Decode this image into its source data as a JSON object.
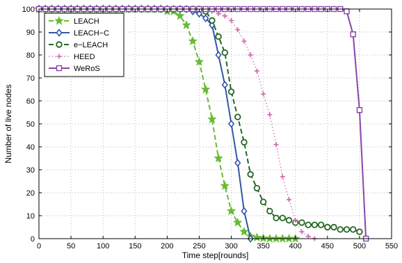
{
  "chart_data": {
    "type": "line",
    "xlabel": "Time step[rounds]",
    "ylabel": "Number of live nodes",
    "xlim": [
      0,
      550
    ],
    "ylim": [
      0,
      100
    ],
    "xticks": [
      0,
      50,
      100,
      150,
      200,
      250,
      300,
      350,
      400,
      450,
      500,
      550
    ],
    "yticks": [
      0,
      10,
      20,
      30,
      40,
      50,
      60,
      70,
      80,
      90,
      100
    ],
    "grid": "dotted",
    "legend_position": "top-left",
    "series": [
      {
        "name": "LEACH",
        "color": "#66bb33",
        "line_style": "dashed",
        "marker": "star",
        "x": [
          0,
          10,
          20,
          30,
          40,
          50,
          60,
          70,
          80,
          90,
          100,
          110,
          120,
          130,
          140,
          150,
          160,
          170,
          180,
          190,
          200,
          210,
          220,
          230,
          240,
          250,
          260,
          270,
          280,
          290,
          300,
          310,
          320,
          330,
          340,
          350,
          360,
          370,
          380,
          390,
          400
        ],
        "y": [
          100,
          100,
          100,
          100,
          100,
          100,
          100,
          100,
          100,
          100,
          100,
          100,
          100,
          100,
          100,
          100,
          100,
          100,
          100,
          100,
          99,
          99,
          97,
          93,
          86,
          77,
          65,
          52,
          35,
          23,
          12,
          7,
          3,
          1,
          0.5,
          0.2,
          0,
          0,
          0,
          0,
          0
        ]
      },
      {
        "name": "LEACH−C",
        "color": "#3355aa",
        "line_style": "solid",
        "marker": "diamond",
        "x": [
          0,
          10,
          20,
          30,
          40,
          50,
          60,
          70,
          80,
          90,
          100,
          110,
          120,
          130,
          140,
          150,
          160,
          170,
          180,
          190,
          200,
          210,
          220,
          230,
          240,
          250,
          260,
          270,
          280,
          290,
          300,
          310,
          320,
          330
        ],
        "y": [
          100,
          100,
          100,
          100,
          100,
          100,
          100,
          100,
          100,
          100,
          100,
          100,
          100,
          100,
          100,
          100,
          100,
          100,
          100,
          100,
          100,
          100,
          100,
          100,
          99,
          98,
          96,
          93,
          80,
          67,
          50,
          33,
          12,
          0
        ]
      },
      {
        "name": "e−LEACH",
        "color": "#226622",
        "line_style": "dashed",
        "marker": "circle",
        "x": [
          0,
          10,
          20,
          30,
          40,
          50,
          60,
          70,
          80,
          90,
          100,
          110,
          120,
          130,
          140,
          150,
          160,
          170,
          180,
          190,
          200,
          210,
          220,
          230,
          240,
          250,
          260,
          270,
          280,
          290,
          300,
          310,
          320,
          330,
          340,
          350,
          360,
          370,
          380,
          390,
          400,
          410,
          420,
          430,
          440,
          450,
          460,
          470,
          480,
          490,
          500
        ],
        "y": [
          100,
          100,
          100,
          100,
          100,
          100,
          100,
          100,
          100,
          100,
          100,
          100,
          100,
          100,
          100,
          100,
          100,
          100,
          100,
          100,
          100,
          100,
          100,
          100,
          100,
          100,
          99,
          95,
          88,
          81,
          64,
          53,
          42,
          28,
          22,
          16,
          12,
          9,
          9,
          8,
          7,
          7,
          6,
          6,
          6,
          5,
          5,
          4,
          4,
          4,
          3
        ]
      },
      {
        "name": "HEED",
        "color": "#cc66aa",
        "line_style": "dotted",
        "marker": "plus",
        "x": [
          0,
          10,
          20,
          30,
          40,
          50,
          60,
          70,
          80,
          90,
          100,
          110,
          120,
          130,
          140,
          150,
          160,
          170,
          180,
          190,
          200,
          210,
          220,
          230,
          240,
          250,
          260,
          270,
          280,
          290,
          300,
          310,
          320,
          330,
          340,
          350,
          360,
          370,
          380,
          390,
          400,
          410,
          420,
          430
        ],
        "y": [
          100,
          100,
          100,
          100,
          100,
          100,
          100,
          100,
          100,
          100,
          100,
          100,
          100,
          100,
          100,
          100,
          100,
          100,
          100,
          100,
          100,
          100,
          100,
          100,
          100,
          100,
          100,
          99,
          98,
          97,
          95,
          91,
          86,
          80,
          73,
          63,
          54,
          41,
          27,
          17,
          8,
          3,
          1,
          0
        ]
      },
      {
        "name": "WeRoS",
        "color": "#8844aa",
        "line_style": "solid",
        "marker": "square",
        "x": [
          0,
          10,
          20,
          30,
          40,
          50,
          60,
          70,
          80,
          90,
          100,
          110,
          120,
          130,
          140,
          150,
          160,
          170,
          180,
          190,
          200,
          210,
          220,
          230,
          240,
          250,
          260,
          270,
          280,
          290,
          300,
          310,
          320,
          330,
          340,
          350,
          360,
          370,
          380,
          390,
          400,
          410,
          420,
          430,
          440,
          450,
          460,
          470,
          480,
          490,
          500,
          510
        ],
        "y": [
          100,
          100,
          100,
          100,
          100,
          100,
          100,
          100,
          100,
          100,
          100,
          100,
          100,
          100,
          100,
          100,
          100,
          100,
          100,
          100,
          100,
          100,
          100,
          100,
          100,
          100,
          100,
          100,
          100,
          100,
          100,
          100,
          100,
          100,
          100,
          100,
          100,
          100,
          100,
          100,
          100,
          100,
          100,
          100,
          100,
          100,
          100,
          100,
          99,
          89,
          56,
          0
        ]
      }
    ]
  }
}
